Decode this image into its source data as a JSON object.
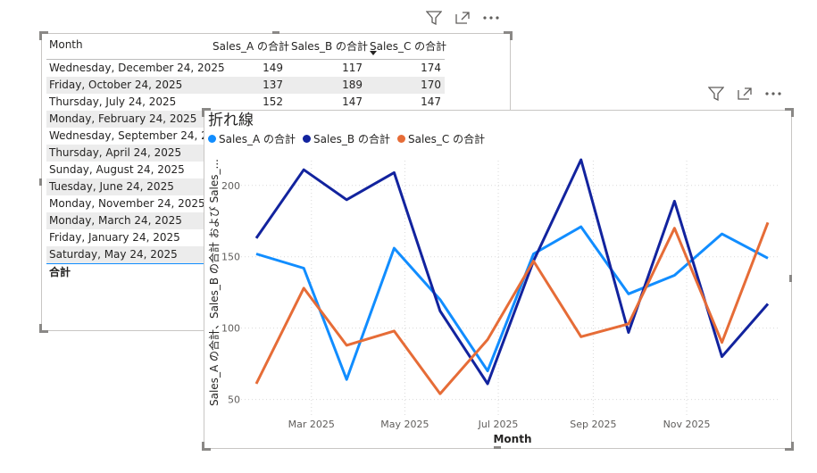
{
  "table_visual": {
    "columns": [
      "Month",
      "Sales_A の合計",
      "Sales_B の合計",
      "Sales_C の合計"
    ],
    "rows": [
      {
        "month": "Wednesday, December 24, 2025",
        "a": "149",
        "b": "117",
        "c": "174"
      },
      {
        "month": "Friday, October 24, 2025",
        "a": "137",
        "b": "189",
        "c": "170"
      },
      {
        "month": "Thursday, July 24, 2025",
        "a": "152",
        "b": "147",
        "c": "147"
      },
      {
        "month": "Monday, February 24, 2025",
        "a": "",
        "b": "",
        "c": ""
      },
      {
        "month": "Wednesday, September 24, 2025",
        "a": "",
        "b": "",
        "c": ""
      },
      {
        "month": "Thursday, April 24, 2025",
        "a": "",
        "b": "",
        "c": ""
      },
      {
        "month": "Sunday, August 24, 2025",
        "a": "",
        "b": "",
        "c": ""
      },
      {
        "month": "Tuesday, June 24, 2025",
        "a": "",
        "b": "",
        "c": ""
      },
      {
        "month": "Monday, November 24, 2025",
        "a": "",
        "b": "",
        "c": ""
      },
      {
        "month": "Monday, March 24, 2025",
        "a": "",
        "b": "",
        "c": ""
      },
      {
        "month": "Friday, January 24, 2025",
        "a": "",
        "b": "",
        "c": ""
      },
      {
        "month": "Saturday, May 24, 2025",
        "a": "",
        "b": "",
        "c": ""
      }
    ],
    "total_label": "合計",
    "sort_indicator": "sort-descending-icon"
  },
  "header_icons": [
    "filter-icon",
    "focus-mode-icon",
    "more-options-icon"
  ],
  "chart_visual": {
    "title": "折れ線",
    "legend": [
      {
        "name": "Sales_A の合計",
        "color": "#118dff"
      },
      {
        "name": "Sales_B の合計",
        "color": "#12239e"
      },
      {
        "name": "Sales_C の合計",
        "color": "#e66c37"
      }
    ]
  },
  "chart_data": {
    "type": "line",
    "title": "折れ線",
    "xlabel": "Month",
    "ylabel": "Sales_A の合計、Sales_B の合計 および Sales_...",
    "x": [
      "2025-01-24",
      "2025-02-24",
      "2025-03-24",
      "2025-04-24",
      "2025-05-24",
      "2025-06-24",
      "2025-07-24",
      "2025-08-24",
      "2025-09-24",
      "2025-10-24",
      "2025-11-24",
      "2025-12-24"
    ],
    "x_ticks": [
      "Mar 2025",
      "May 2025",
      "Jul 2025",
      "Sep 2025",
      "Nov 2025"
    ],
    "x_tick_dates": [
      "2025-03-01",
      "2025-05-01",
      "2025-07-01",
      "2025-09-01",
      "2025-11-01"
    ],
    "y_ticks": [
      50,
      100,
      150,
      200
    ],
    "ylim": [
      41,
      228
    ],
    "grid": true,
    "legend_position": "top-left",
    "series": [
      {
        "name": "Sales_A の合計",
        "color": "#118dff",
        "values": [
          152,
          142,
          64,
          156,
          120,
          70,
          152,
          171,
          124,
          137,
          166,
          149
        ]
      },
      {
        "name": "Sales_B の合計",
        "color": "#12239e",
        "values": [
          163,
          211,
          190,
          209,
          112,
          61,
          147,
          218,
          97,
          189,
          80,
          117
        ]
      },
      {
        "name": "Sales_C の合計",
        "color": "#e66c37",
        "values": [
          61,
          128,
          88,
          98,
          54,
          92,
          147,
          94,
          103,
          170,
          90,
          174
        ]
      }
    ]
  }
}
